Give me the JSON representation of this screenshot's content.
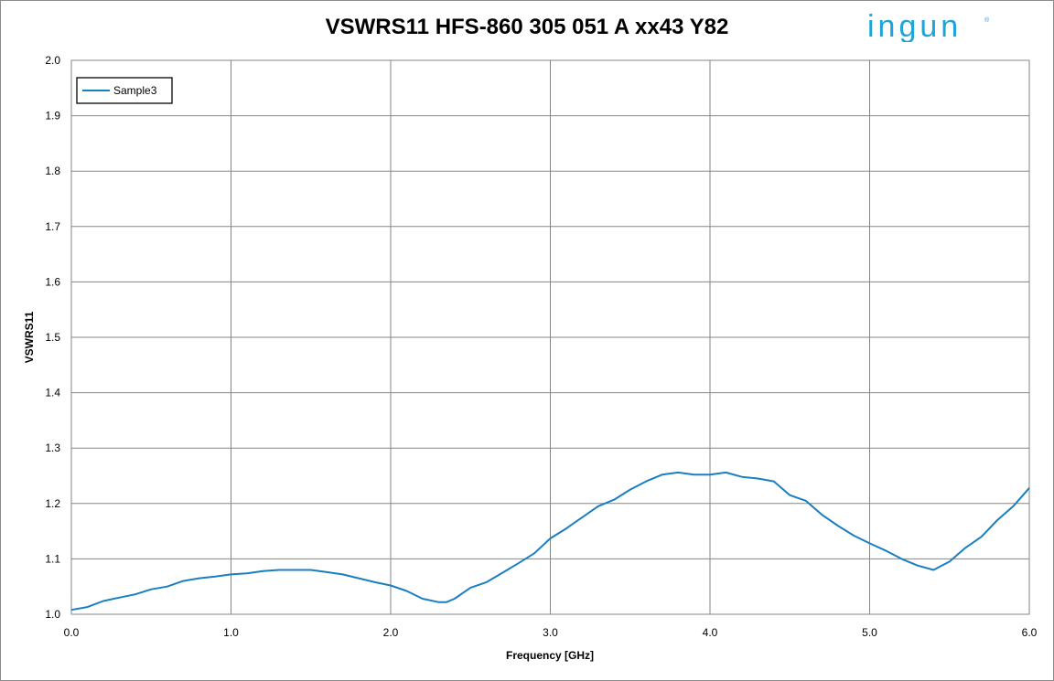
{
  "logo_text": "ingun",
  "logo_color": "#1fa3d9",
  "chart_data": {
    "type": "line",
    "title": "VSWRS11 HFS-860 305 051 A xx43 Y82",
    "xlabel": "Frequency [GHz]",
    "ylabel": "VSWRS11",
    "xlim": [
      0.0,
      6.0
    ],
    "ylim": [
      1.0,
      2.0
    ],
    "xticks": [
      "0.0",
      "1.0",
      "2.0",
      "3.0",
      "4.0",
      "5.0",
      "6.0"
    ],
    "yticks": [
      "1.0",
      "1.1",
      "1.2",
      "1.3",
      "1.4",
      "1.5",
      "1.6",
      "1.7",
      "1.8",
      "1.9",
      "2.0"
    ],
    "grid": true,
    "legend": "top-left",
    "series": [
      {
        "name": "Sample3",
        "color": "#1a7fc1",
        "x": [
          0.0,
          0.1,
          0.2,
          0.3,
          0.4,
          0.5,
          0.6,
          0.7,
          0.8,
          0.9,
          1.0,
          1.1,
          1.2,
          1.3,
          1.4,
          1.5,
          1.6,
          1.7,
          1.8,
          1.9,
          2.0,
          2.1,
          2.2,
          2.3,
          2.35,
          2.4,
          2.5,
          2.6,
          2.7,
          2.8,
          2.9,
          3.0,
          3.1,
          3.2,
          3.3,
          3.4,
          3.5,
          3.6,
          3.7,
          3.8,
          3.9,
          4.0,
          4.1,
          4.2,
          4.3,
          4.4,
          4.5,
          4.6,
          4.7,
          4.8,
          4.9,
          5.0,
          5.1,
          5.2,
          5.3,
          5.4,
          5.5,
          5.6,
          5.7,
          5.8,
          5.9,
          6.0
        ],
        "y": [
          1.008,
          1.013,
          1.024,
          1.03,
          1.036,
          1.045,
          1.05,
          1.06,
          1.065,
          1.068,
          1.072,
          1.074,
          1.078,
          1.08,
          1.08,
          1.08,
          1.076,
          1.072,
          1.065,
          1.058,
          1.052,
          1.042,
          1.028,
          1.022,
          1.022,
          1.028,
          1.048,
          1.058,
          1.075,
          1.092,
          1.11,
          1.137,
          1.155,
          1.175,
          1.195,
          1.207,
          1.225,
          1.24,
          1.252,
          1.256,
          1.252,
          1.252,
          1.256,
          1.248,
          1.245,
          1.24,
          1.215,
          1.205,
          1.18,
          1.16,
          1.142,
          1.128,
          1.115,
          1.1,
          1.088,
          1.08,
          1.095,
          1.12,
          1.14,
          1.17,
          1.195,
          1.228
        ]
      }
    ]
  }
}
